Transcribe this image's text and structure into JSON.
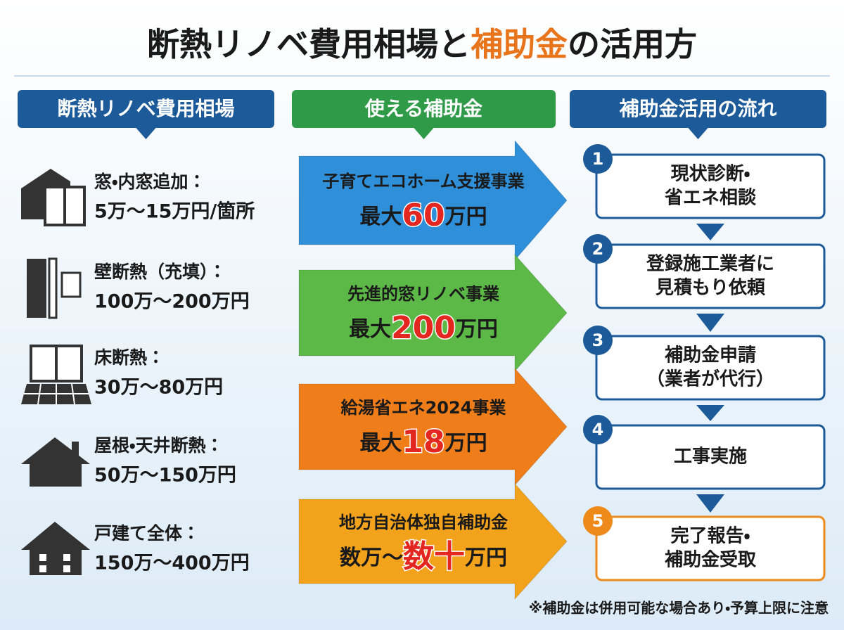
{
  "title": {
    "parts": [
      "断熱リノベ費用相場と",
      "補助金",
      "の活用方"
    ]
  },
  "columns": {
    "costs": "断熱リノベ費用相場",
    "subsidies": "使える補助金",
    "flow": "補助金活用の流れ"
  },
  "costs": [
    {
      "label": "窓・内窓追加：",
      "price": "5万～15万円/箇所"
    },
    {
      "label": "壁断熱（充填）：",
      "price": "100万～200万円"
    },
    {
      "label": "床断熱：",
      "price": "30万～80万円"
    },
    {
      "label": "屋根・天井断熱：",
      "price": "50万～150万円"
    },
    {
      "label": "戸建て全体：",
      "price": "150万～400万円"
    }
  ],
  "subsidies": [
    {
      "name": "子育てエコホーム支援事業",
      "prefix": "最大",
      "amount": "60",
      "unit": "万円"
    },
    {
      "name": "先進的窓リノベ事業",
      "prefix": "最大",
      "amount": "200",
      "unit": "万円"
    },
    {
      "name": "給湯省エネ2024事業",
      "prefix": "最大",
      "amount": "18",
      "unit": "万円"
    },
    {
      "name": "地方自治体独自補助金",
      "prefix": "数万～",
      "amount": "数十",
      "unit": "万円"
    }
  ],
  "steps": [
    {
      "number": 1,
      "lines": [
        "現状診断・",
        "省エネ相談"
      ]
    },
    {
      "number": 2,
      "lines": [
        "登録施工業者に",
        "見積もり依頼"
      ]
    },
    {
      "number": 3,
      "lines": [
        "補助金申請",
        "（業者が代行）"
      ]
    },
    {
      "number": 4,
      "lines": [
        "工事実施"
      ]
    },
    {
      "number": 5,
      "lines": [
        "完了報告・",
        "補助金受取"
      ]
    }
  ],
  "footnote": "※補助金は併用可能な場合あり・予算上限に注意"
}
